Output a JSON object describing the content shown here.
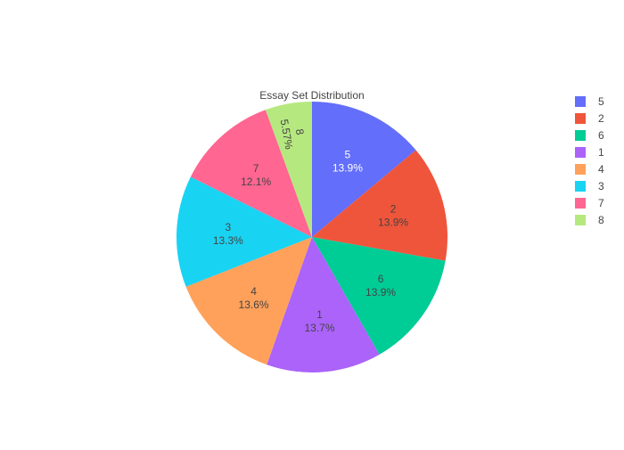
{
  "chart_data": {
    "type": "pie",
    "title": "Essay Set Distribution",
    "slices": [
      {
        "label": "5",
        "value": 13.9,
        "text": "13.9%",
        "color": "#636efa"
      },
      {
        "label": "2",
        "value": 13.9,
        "text": "13.9%",
        "color": "#ef553b"
      },
      {
        "label": "6",
        "value": 13.9,
        "text": "13.9%",
        "color": "#00cc96"
      },
      {
        "label": "1",
        "value": 13.7,
        "text": "13.7%",
        "color": "#ab63fa"
      },
      {
        "label": "4",
        "value": 13.6,
        "text": "13.6%",
        "color": "#ffa15a"
      },
      {
        "label": "3",
        "value": 13.3,
        "text": "13.3%",
        "color": "#19d3f3"
      },
      {
        "label": "7",
        "value": 12.1,
        "text": "12.1%",
        "color": "#ff6692"
      },
      {
        "label": "8",
        "value": 5.57,
        "text": "5.57%",
        "color": "#b6e880"
      }
    ],
    "direction": "clockwise",
    "start": "12 o'clock",
    "legend_placement": "top-right"
  }
}
